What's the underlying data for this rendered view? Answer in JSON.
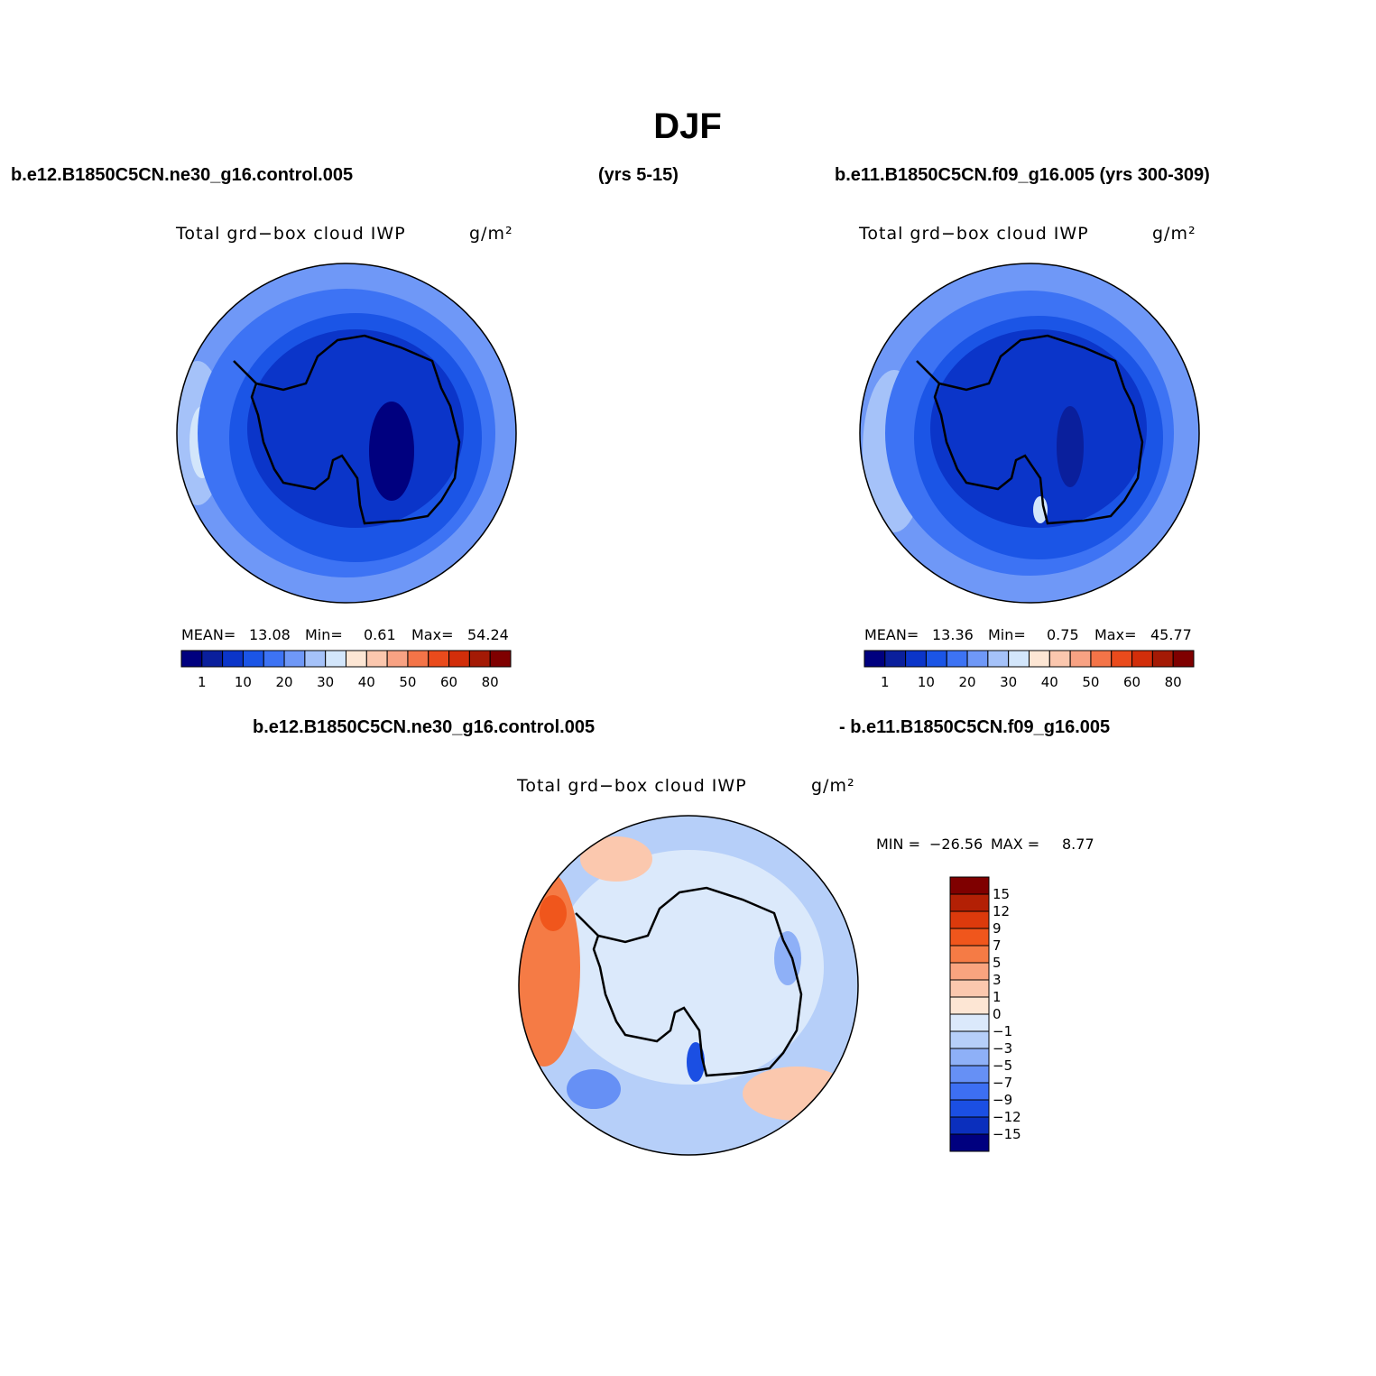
{
  "title": "DJF",
  "panels": [
    {
      "header": "b.e12.B1850C5CN.ne30_g16.control.005",
      "header_extra": "(yrs 5-15)",
      "plot_title": "Total grd−box cloud IWP",
      "units": "g/m²",
      "stats": {
        "mean_label": "MEAN=",
        "mean": 13.08,
        "min_label": "Min=",
        "min": 0.61,
        "max_label": "Max=",
        "max": 54.24
      }
    },
    {
      "header": "b.e11.B1850C5CN.f09_g16.005 (yrs 300-309)",
      "plot_title": "Total grd−box cloud IWP",
      "units": "g/m²",
      "stats": {
        "mean_label": "MEAN=",
        "mean": 13.36,
        "min_label": "Min=",
        "min": 0.75,
        "max_label": "Max=",
        "max": 45.77
      }
    },
    {
      "header": "b.e12.B1850C5CN.ne30_g16.control.005",
      "header_extra": "- b.e11.B1850C5CN.f09_g16.005",
      "plot_title": "Total grd−box cloud IWP",
      "units": "g/m²",
      "stats": {
        "min_label": "MIN =",
        "min": "−26.56",
        "max_label": "MAX =",
        "max": 8.77
      }
    }
  ],
  "colorbar": {
    "colors": [
      "#00007f",
      "#0a1f9c",
      "#0b35c9",
      "#1b55e6",
      "#3d73f4",
      "#6f98f7",
      "#a5c2f9",
      "#d3e6fb",
      "#fde6d4",
      "#fbc7ae",
      "#f8a283",
      "#f47448",
      "#ea4b1c",
      "#d22e0a",
      "#a41a05",
      "#7f0000"
    ],
    "labels": [
      "1",
      "10",
      "20",
      "30",
      "40",
      "50",
      "60",
      "80"
    ]
  },
  "diff_colorbar": {
    "colors": [
      "#7f0000",
      "#b32005",
      "#dc3a0c",
      "#f0561c",
      "#f57b45",
      "#f9a47f",
      "#fbc8ae",
      "#fde6d4",
      "#dbe9fb",
      "#b6cff9",
      "#8eb0f7",
      "#6690f5",
      "#3d6ff2",
      "#1b4fe3",
      "#0b2fbd",
      "#00007f"
    ],
    "labels": [
      "15",
      "12",
      "9",
      "7",
      "5",
      "3",
      "1",
      "0",
      "−1",
      "−3",
      "−5",
      "−7",
      "−9",
      "−12",
      "−15"
    ]
  }
}
